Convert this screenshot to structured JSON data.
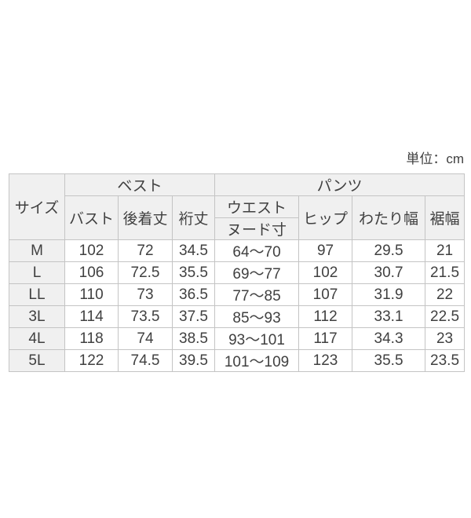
{
  "unit_label": "単位：cm",
  "header": {
    "size": "サイズ",
    "group_vest": "ベスト",
    "group_pants": "パンツ",
    "bust": "バスト",
    "back_length": "後着丈",
    "sleeve_length": "裄丈",
    "waist_line1": "ウエスト",
    "waist_line2": "ヌード寸",
    "hip": "ヒップ",
    "thigh_width": "わたり幅",
    "hem_width": "裾幅"
  },
  "rows": [
    {
      "size": "M",
      "values": [
        "102",
        "72",
        "34.5",
        "64～70",
        "97",
        "29.5",
        "21"
      ]
    },
    {
      "size": "L",
      "values": [
        "106",
        "72.5",
        "35.5",
        "69～77",
        "102",
        "30.7",
        "21.5"
      ]
    },
    {
      "size": "LL",
      "values": [
        "110",
        "73",
        "36.5",
        "77～85",
        "107",
        "31.9",
        "22"
      ]
    },
    {
      "size": "3L",
      "values": [
        "114",
        "73.5",
        "37.5",
        "85～93",
        "112",
        "33.1",
        "22.5"
      ]
    },
    {
      "size": "4L",
      "values": [
        "118",
        "74",
        "38.5",
        "93～101",
        "117",
        "34.3",
        "23"
      ]
    },
    {
      "size": "5L",
      "values": [
        "122",
        "74.5",
        "39.5",
        "101～109",
        "123",
        "35.5",
        "23.5"
      ]
    }
  ],
  "chart_data": {
    "type": "table",
    "title": "単位：cm",
    "column_groups": [
      {
        "label": "",
        "span": 1
      },
      {
        "label": "ベスト",
        "span": 3
      },
      {
        "label": "パンツ",
        "span": 4
      }
    ],
    "columns": [
      "サイズ",
      "バスト",
      "後着丈",
      "裄丈",
      "ウエスト ヌード寸",
      "ヒップ",
      "わたり幅",
      "裾幅"
    ],
    "rows": [
      [
        "M",
        102,
        72,
        34.5,
        "64～70",
        97,
        29.5,
        21
      ],
      [
        "L",
        106,
        72.5,
        35.5,
        "69～77",
        102,
        30.7,
        21.5
      ],
      [
        "LL",
        110,
        73,
        36.5,
        "77～85",
        107,
        31.9,
        22
      ],
      [
        "3L",
        114,
        73.5,
        37.5,
        "85～93",
        112,
        33.1,
        22.5
      ],
      [
        "4L",
        118,
        74,
        38.5,
        "93～101",
        117,
        34.3,
        23
      ],
      [
        "5L",
        122,
        74.5,
        39.5,
        "101～109",
        123,
        35.5,
        23.5
      ]
    ]
  },
  "colors": {
    "header_bg": "#f0f0f0",
    "cell_bg": "#ffffff",
    "border": "#c4c4c4",
    "text": "#404040"
  }
}
